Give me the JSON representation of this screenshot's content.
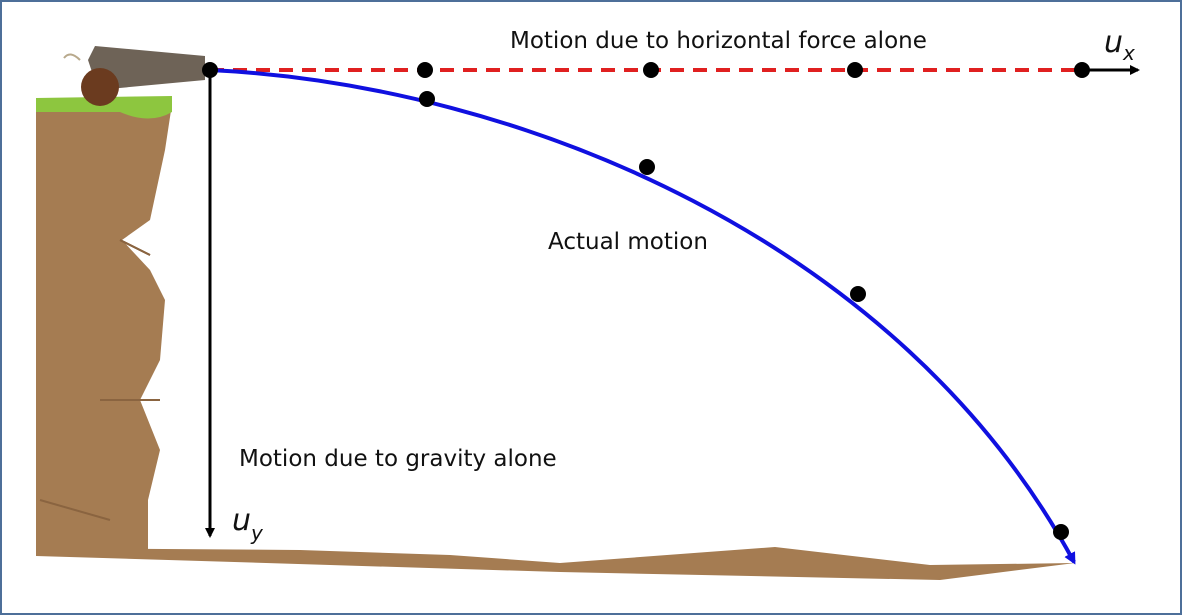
{
  "labels": {
    "horizontal": "Motion due to horizontal force alone",
    "actual": "Actual motion",
    "gravity": "Motion due to gravity alone"
  },
  "ux": {
    "symbol": "u",
    "subscript": "x"
  },
  "uy": {
    "symbol": "u",
    "subscript": "y"
  }
}
